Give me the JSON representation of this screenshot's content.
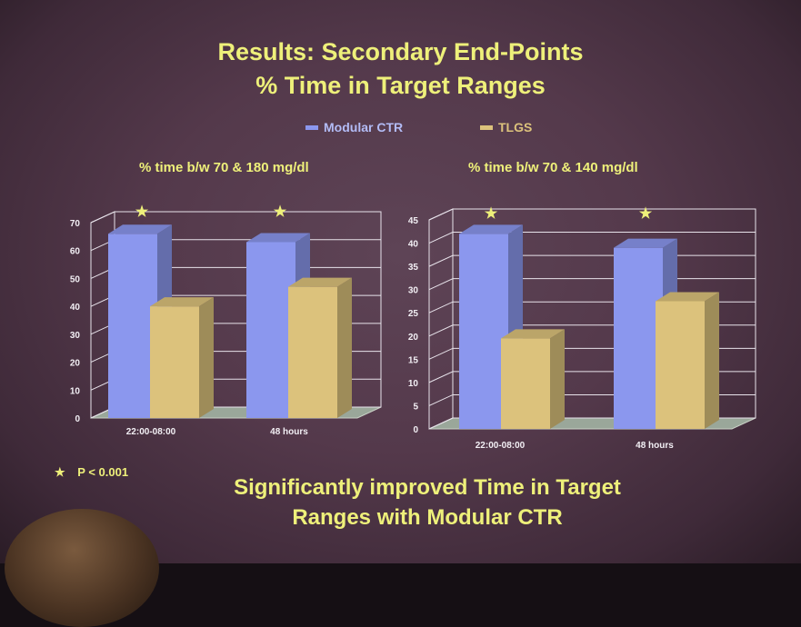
{
  "title": {
    "line1": "Results: Secondary End-Points",
    "line2": "% Time in Target Ranges"
  },
  "legend": [
    {
      "label": "Modular CTR",
      "color": "#8b97ee"
    },
    {
      "label": "TLGS",
      "color": "#dcc27c"
    }
  ],
  "colors": {
    "text": "#eef07a",
    "modular_ctr": "#8b97ee",
    "tlgs": "#dcc27c"
  },
  "significance_marker": "★",
  "p_note": "P < 0.001",
  "chart_data": [
    {
      "type": "bar",
      "title": "% time b/w 70 & 180 mg/dl",
      "categories": [
        "22:00-08:00",
        "48 hours"
      ],
      "series": [
        {
          "name": "Modular CTR",
          "values": [
            66,
            63
          ]
        },
        {
          "name": "TLGS",
          "values": [
            40,
            47
          ]
        }
      ],
      "yticks": [
        "0",
        "10",
        "20",
        "30",
        "40",
        "50",
        "60",
        "70"
      ],
      "ylim": [
        0,
        70
      ],
      "significant": [
        true,
        true
      ],
      "grid": true,
      "three_d": true
    },
    {
      "type": "bar",
      "title": "% time b/w 70 & 140 mg/dl",
      "categories": [
        "22:00-08:00",
        "48 hours"
      ],
      "series": [
        {
          "name": "Modular CTR",
          "values": [
            42,
            39
          ]
        },
        {
          "name": "TLGS",
          "values": [
            19.5,
            27.5
          ]
        }
      ],
      "yticks": [
        "0",
        "5",
        "10",
        "15",
        "20",
        "25",
        "30",
        "35",
        "40",
        "45"
      ],
      "ylim": [
        0,
        45
      ],
      "significant": [
        true,
        true
      ],
      "grid": true,
      "three_d": true
    }
  ],
  "conclusion": {
    "line1": "Significantly improved Time in Target",
    "line2": "Ranges with Modular CTR"
  }
}
